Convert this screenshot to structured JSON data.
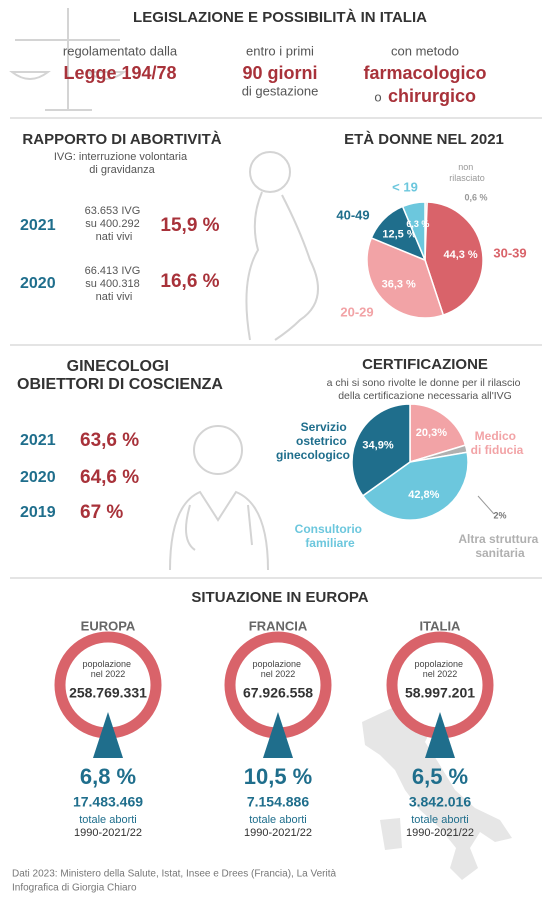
{
  "header": {
    "title": "LEGISLAZIONE E POSSIBILITÀ IN ITALIA",
    "items": [
      {
        "pre": "regolamentato dalla",
        "main": "Legge 194/78"
      },
      {
        "pre": "entro i primi",
        "main": "90 giorni",
        "post": "di gestazione"
      },
      {
        "pre": "con metodo",
        "main": "farmacologico",
        "joiner": "o",
        "main2": "chirurgico"
      }
    ]
  },
  "abortivity": {
    "title": "RAPPORTO DI ABORTIVITÀ",
    "subtitle": "IVG: interruzione volontaria di gravidanza",
    "rows": [
      {
        "year": "2021",
        "detail": "63.653 IVG su 400.292 nati vivi",
        "rate": "15,9 %"
      },
      {
        "year": "2020",
        "detail": "66.413 IVG su 400.318 nati vivi",
        "rate": "16,6 %"
      }
    ]
  },
  "objectors": {
    "title": "GINECOLOGI OBIETTORI DI COSCIENZA",
    "rows": [
      {
        "year": "2021",
        "value": "63,6 %"
      },
      {
        "year": "2020",
        "value": "64,6 %"
      },
      {
        "year": "2019",
        "value": "67 %"
      }
    ]
  },
  "chart_data": [
    {
      "type": "pie",
      "title": "ETÀ DONNE NEL 2021",
      "categories": [
        "non rilasciato",
        "30-39",
        "20-29",
        "40-49",
        "< 19"
      ],
      "values": [
        0.6,
        44.3,
        36.3,
        12.5,
        6.3
      ],
      "value_labels": [
        "0,6 %",
        "44,3 %",
        "36,3 %",
        "12,5 %",
        "6,3 %"
      ],
      "colors": [
        "#c4c4c4",
        "#d9636a",
        "#f2a3a6",
        "#1f6e8c",
        "#6cc7dd"
      ]
    },
    {
      "type": "pie",
      "title": "CERTIFICAZIONE",
      "subtitle": "a chi si sono rivolte le donne per il rilascio della certificazione necessaria all'IVG",
      "categories": [
        "Medico di fiducia",
        "Altra struttura sanitaria",
        "Consultorio familiare",
        "Servizio ostetrico ginecologico"
      ],
      "values": [
        20.3,
        2,
        42.8,
        34.9
      ],
      "value_labels": [
        "20,3%",
        "2%",
        "42,8%",
        "34,9%"
      ],
      "colors": [
        "#f2a3a6",
        "#b0b0b0",
        "#6cc7dd",
        "#1f6e8c"
      ]
    }
  ],
  "europe": {
    "title": "SITUAZIONE IN EUROPA",
    "items": [
      {
        "name": "EUROPA",
        "pop_label": "popolazione nel 2022",
        "population": "258.769.331",
        "rate": "6,8 %",
        "aborts": "17.483.469",
        "note": "totale aborti",
        "period": "1990-2021/22"
      },
      {
        "name": "FRANCIA",
        "pop_label": "popolazione nel 2022",
        "population": "67.926.558",
        "rate": "10,5 %",
        "aborts": "7.154.886",
        "note": "totale aborti",
        "period": "1990-2021/22"
      },
      {
        "name": "ITALIA",
        "pop_label": "popolazione nel 2022",
        "population": "58.997.201",
        "rate": "6,5 %",
        "aborts": "3.842.016",
        "note": "totale aborti",
        "period": "1990-2021/22"
      }
    ]
  },
  "footer": {
    "source": "Dati 2023: Ministero della Salute, Istat, Insee e Drees (Francia), La Verità",
    "credit": "Infografica di Giorgia Chiaro"
  }
}
